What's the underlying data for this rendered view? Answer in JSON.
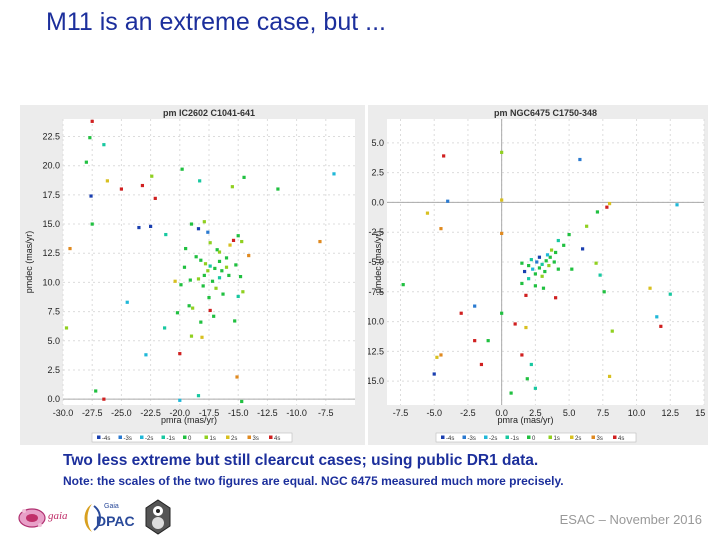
{
  "slide": {
    "title": "M11 is an extreme case, but ...",
    "caption": "Two less extreme but still clearcut cases; using public DR1 data.",
    "note": "Note: the scales of the two figures are equal. NGC 6475 measured much more precisely.",
    "footer": "ESAC – November 2016",
    "logos": {
      "gaia_text": "gaia",
      "dpac_small": "Gaia",
      "dpac_text": "DPAC"
    }
  },
  "colors": {
    "title": "#1c2f9c",
    "panel_bg": "#ececec",
    "plot_bg": "#ffffff",
    "axis_zero": "#aaaaaa",
    "legend": [
      "#1a3fb0",
      "#2a7ad0",
      "#20b8d8",
      "#18c8a0",
      "#20c040",
      "#90d020",
      "#d8c020",
      "#e08a20",
      "#d02020"
    ]
  },
  "chart_data": [
    {
      "type": "scatter",
      "title": "pm IC2602  C1041-641",
      "xlabel": "pmra (mas/yr)",
      "ylabel": "pmdec (mas/yr)",
      "xlim": [
        -30.0,
        -5.0
      ],
      "ylim": [
        -0.5,
        24.0
      ],
      "xticks": [
        "-30.0",
        "-27.5",
        "-25.0",
        "-22.5",
        "-20.0",
        "-17.5",
        "-15.0",
        "-12.5",
        "-10.0",
        "-7.5"
      ],
      "xtick_values": [
        -30.0,
        -27.5,
        -25.0,
        -22.5,
        -20.0,
        -17.5,
        -15.0,
        -12.5,
        -10.0,
        -7.5
      ],
      "yticks": [
        "0.0",
        "2.5",
        "5.0",
        "7.5",
        "10.0",
        "12.5",
        "15.0",
        "17.5",
        "20.0",
        "22.5"
      ],
      "ytick_values": [
        0.0,
        2.5,
        5.0,
        7.5,
        10.0,
        12.5,
        15.0,
        17.5,
        20.0,
        22.5
      ],
      "legend": [
        "-4s",
        "-3s",
        "-2s",
        "-1s",
        "0",
        "1s",
        "2s",
        "3s",
        "4s"
      ],
      "points": [
        {
          "x": -27.7,
          "y": 22.4,
          "c": 4
        },
        {
          "x": -27.5,
          "y": 23.8,
          "c": 8
        },
        {
          "x": -28.0,
          "y": 20.3,
          "c": 4
        },
        {
          "x": -26.5,
          "y": 21.8,
          "c": 3
        },
        {
          "x": -26.2,
          "y": 18.7,
          "c": 6
        },
        {
          "x": -27.6,
          "y": 17.4,
          "c": 0
        },
        {
          "x": -25.0,
          "y": 18.0,
          "c": 8
        },
        {
          "x": -23.2,
          "y": 18.3,
          "c": 8
        },
        {
          "x": -22.4,
          "y": 19.1,
          "c": 5
        },
        {
          "x": -22.1,
          "y": 17.2,
          "c": 8
        },
        {
          "x": -19.8,
          "y": 19.7,
          "c": 4
        },
        {
          "x": -18.3,
          "y": 18.7,
          "c": 3
        },
        {
          "x": -15.5,
          "y": 18.2,
          "c": 5
        },
        {
          "x": -14.5,
          "y": 19.0,
          "c": 4
        },
        {
          "x": -11.6,
          "y": 18.0,
          "c": 4
        },
        {
          "x": -6.8,
          "y": 19.3,
          "c": 2
        },
        {
          "x": -27.5,
          "y": 15.0,
          "c": 4
        },
        {
          "x": -29.4,
          "y": 12.9,
          "c": 7
        },
        {
          "x": -23.5,
          "y": 14.7,
          "c": 0
        },
        {
          "x": -22.5,
          "y": 14.8,
          "c": 0
        },
        {
          "x": -21.2,
          "y": 14.1,
          "c": 3
        },
        {
          "x": -19.0,
          "y": 15.0,
          "c": 4
        },
        {
          "x": -18.4,
          "y": 14.6,
          "c": 0
        },
        {
          "x": -17.9,
          "y": 15.2,
          "c": 5
        },
        {
          "x": -17.6,
          "y": 14.3,
          "c": 1
        },
        {
          "x": -17.4,
          "y": 13.4,
          "c": 5
        },
        {
          "x": -16.8,
          "y": 12.8,
          "c": 4
        },
        {
          "x": -15.7,
          "y": 13.2,
          "c": 6
        },
        {
          "x": -15.4,
          "y": 13.6,
          "c": 8
        },
        {
          "x": -15.0,
          "y": 14.0,
          "c": 4
        },
        {
          "x": -14.7,
          "y": 13.5,
          "c": 5
        },
        {
          "x": -14.1,
          "y": 12.3,
          "c": 7
        },
        {
          "x": -19.5,
          "y": 12.9,
          "c": 4
        },
        {
          "x": -18.6,
          "y": 12.2,
          "c": 4
        },
        {
          "x": -18.2,
          "y": 11.9,
          "c": 4
        },
        {
          "x": -17.8,
          "y": 11.6,
          "c": 5
        },
        {
          "x": -17.4,
          "y": 11.4,
          "c": 3
        },
        {
          "x": -17.0,
          "y": 11.2,
          "c": 4
        },
        {
          "x": -16.6,
          "y": 11.8,
          "c": 4
        },
        {
          "x": -16.4,
          "y": 11.0,
          "c": 4
        },
        {
          "x": -16.0,
          "y": 11.3,
          "c": 5
        },
        {
          "x": -15.8,
          "y": 10.6,
          "c": 4
        },
        {
          "x": -17.9,
          "y": 10.6,
          "c": 4
        },
        {
          "x": -18.4,
          "y": 10.3,
          "c": 5
        },
        {
          "x": -19.1,
          "y": 10.2,
          "c": 4
        },
        {
          "x": -17.2,
          "y": 10.1,
          "c": 4
        },
        {
          "x": -16.6,
          "y": 10.4,
          "c": 3
        },
        {
          "x": -17.6,
          "y": 11.0,
          "c": 5
        },
        {
          "x": -18.0,
          "y": 9.7,
          "c": 4
        },
        {
          "x": -16.9,
          "y": 9.5,
          "c": 5
        },
        {
          "x": -19.9,
          "y": 9.8,
          "c": 4
        },
        {
          "x": -20.4,
          "y": 10.1,
          "c": 6
        },
        {
          "x": -19.6,
          "y": 11.3,
          "c": 4
        },
        {
          "x": -16.0,
          "y": 12.1,
          "c": 4
        },
        {
          "x": -15.2,
          "y": 11.5,
          "c": 4
        },
        {
          "x": -16.3,
          "y": 9.0,
          "c": 4
        },
        {
          "x": -15.0,
          "y": 8.8,
          "c": 3
        },
        {
          "x": -14.6,
          "y": 9.2,
          "c": 5
        },
        {
          "x": -17.5,
          "y": 8.7,
          "c": 4
        },
        {
          "x": -19.2,
          "y": 8.0,
          "c": 4
        },
        {
          "x": -18.9,
          "y": 7.8,
          "c": 5
        },
        {
          "x": -20.2,
          "y": 7.4,
          "c": 4
        },
        {
          "x": -18.2,
          "y": 6.6,
          "c": 4
        },
        {
          "x": -17.1,
          "y": 7.1,
          "c": 4
        },
        {
          "x": -17.4,
          "y": 7.6,
          "c": 8
        },
        {
          "x": -19.0,
          "y": 5.4,
          "c": 5
        },
        {
          "x": -18.1,
          "y": 5.3,
          "c": 6
        },
        {
          "x": -15.3,
          "y": 6.7,
          "c": 4
        },
        {
          "x": -24.5,
          "y": 8.3,
          "c": 2
        },
        {
          "x": -21.3,
          "y": 6.1,
          "c": 3
        },
        {
          "x": -22.9,
          "y": 3.8,
          "c": 2
        },
        {
          "x": -20.0,
          "y": 3.9,
          "c": 8
        },
        {
          "x": -27.2,
          "y": 0.7,
          "c": 4
        },
        {
          "x": -26.5,
          "y": 0.0,
          "c": 8
        },
        {
          "x": -20.0,
          "y": -0.1,
          "c": 2
        },
        {
          "x": -18.4,
          "y": 0.3,
          "c": 3
        },
        {
          "x": -15.1,
          "y": 1.9,
          "c": 7
        },
        {
          "x": -14.7,
          "y": -0.2,
          "c": 4
        },
        {
          "x": -29.7,
          "y": 6.1,
          "c": 5
        },
        {
          "x": -8.0,
          "y": 13.5,
          "c": 7
        },
        {
          "x": -14.8,
          "y": 10.5,
          "c": 4
        },
        {
          "x": -16.6,
          "y": 12.6,
          "c": 5
        }
      ]
    },
    {
      "type": "scatter",
      "title": "pm NGC6475  C1750-348",
      "xlabel": "pmra (mas/yr)",
      "ylabel": "pmdec (mas/yr)",
      "xlim": [
        -8.5,
        15.0
      ],
      "ylim": [
        -17.0,
        7.0
      ],
      "xticks": [
        "-7.5",
        "-5.0",
        "-2.5",
        "0.0",
        "2.5",
        "5.0",
        "7.5",
        "10.0",
        "12.5",
        "15.0"
      ],
      "xtick_values": [
        -7.5,
        -5.0,
        -2.5,
        0.0,
        2.5,
        5.0,
        7.5,
        10.0,
        12.5,
        15.0
      ],
      "yticks": [
        "5.0",
        "2.5",
        "0.0",
        "-2.5",
        "-5.0",
        "-7.5",
        "-10.0",
        "-12.5",
        "-15.0"
      ],
      "ytick_values": [
        5.0,
        2.5,
        0.0,
        -2.5,
        -5.0,
        -7.5,
        -10.0,
        -12.5,
        -15.0
      ],
      "legend": [
        "-4s",
        "-3s",
        "-2s",
        "-1s",
        "0",
        "1s",
        "2s",
        "3s",
        "4s"
      ],
      "points": [
        {
          "x": -4.3,
          "y": 3.9,
          "c": 8
        },
        {
          "x": 0.0,
          "y": 4.2,
          "c": 5
        },
        {
          "x": 5.8,
          "y": 3.6,
          "c": 1
        },
        {
          "x": -4.0,
          "y": 0.1,
          "c": 1
        },
        {
          "x": 0.0,
          "y": 0.2,
          "c": 6
        },
        {
          "x": 8.0,
          "y": -0.1,
          "c": 6
        },
        {
          "x": 7.8,
          "y": -0.4,
          "c": 8
        },
        {
          "x": 13.0,
          "y": -0.2,
          "c": 2
        },
        {
          "x": 7.1,
          "y": -0.8,
          "c": 4
        },
        {
          "x": -5.5,
          "y": -0.9,
          "c": 6
        },
        {
          "x": -4.5,
          "y": -2.2,
          "c": 7
        },
        {
          "x": 0.0,
          "y": -2.6,
          "c": 7
        },
        {
          "x": 6.3,
          "y": -2.0,
          "c": 5
        },
        {
          "x": 5.0,
          "y": -2.7,
          "c": 4
        },
        {
          "x": 4.6,
          "y": -3.6,
          "c": 4
        },
        {
          "x": 4.2,
          "y": -3.2,
          "c": 3
        },
        {
          "x": 4.0,
          "y": -4.2,
          "c": 4
        },
        {
          "x": 3.6,
          "y": -4.6,
          "c": 4
        },
        {
          "x": 3.3,
          "y": -4.9,
          "c": 4
        },
        {
          "x": 3.0,
          "y": -5.2,
          "c": 3
        },
        {
          "x": 2.8,
          "y": -5.5,
          "c": 4
        },
        {
          "x": 3.2,
          "y": -5.8,
          "c": 4
        },
        {
          "x": 3.5,
          "y": -5.3,
          "c": 5
        },
        {
          "x": 3.9,
          "y": -5.0,
          "c": 4
        },
        {
          "x": 2.6,
          "y": -5.0,
          "c": 1
        },
        {
          "x": 2.3,
          "y": -5.6,
          "c": 2
        },
        {
          "x": 2.0,
          "y": -5.3,
          "c": 4
        },
        {
          "x": 2.5,
          "y": -6.0,
          "c": 4
        },
        {
          "x": 3.0,
          "y": -6.2,
          "c": 5
        },
        {
          "x": 2.2,
          "y": -4.8,
          "c": 3
        },
        {
          "x": 4.2,
          "y": -5.6,
          "c": 4
        },
        {
          "x": 1.7,
          "y": -5.8,
          "c": 0
        },
        {
          "x": 2.0,
          "y": -6.4,
          "c": 3
        },
        {
          "x": 3.7,
          "y": -4.0,
          "c": 5
        },
        {
          "x": 3.4,
          "y": -4.4,
          "c": 2
        },
        {
          "x": 2.8,
          "y": -4.6,
          "c": 0
        },
        {
          "x": 1.5,
          "y": -5.1,
          "c": 4
        },
        {
          "x": 5.2,
          "y": -5.6,
          "c": 4
        },
        {
          "x": 6.0,
          "y": -3.9,
          "c": 0
        },
        {
          "x": 7.0,
          "y": -5.1,
          "c": 5
        },
        {
          "x": 2.5,
          "y": -7.0,
          "c": 4
        },
        {
          "x": 3.1,
          "y": -7.2,
          "c": 4
        },
        {
          "x": 1.8,
          "y": -7.8,
          "c": 8
        },
        {
          "x": 4.0,
          "y": -8.0,
          "c": 8
        },
        {
          "x": 1.5,
          "y": -6.8,
          "c": 4
        },
        {
          "x": 7.3,
          "y": -6.1,
          "c": 3
        },
        {
          "x": 7.6,
          "y": -7.5,
          "c": 4
        },
        {
          "x": 11.0,
          "y": -7.2,
          "c": 6
        },
        {
          "x": 12.5,
          "y": -7.7,
          "c": 3
        },
        {
          "x": -7.3,
          "y": -6.9,
          "c": 4
        },
        {
          "x": -2.0,
          "y": -8.7,
          "c": 1
        },
        {
          "x": -3.0,
          "y": -9.3,
          "c": 8
        },
        {
          "x": 0.0,
          "y": -9.3,
          "c": 4
        },
        {
          "x": 1.0,
          "y": -10.2,
          "c": 8
        },
        {
          "x": 1.8,
          "y": -10.5,
          "c": 6
        },
        {
          "x": 11.5,
          "y": -9.6,
          "c": 2
        },
        {
          "x": 11.8,
          "y": -10.4,
          "c": 8
        },
        {
          "x": 8.2,
          "y": -10.8,
          "c": 5
        },
        {
          "x": -2.0,
          "y": -11.6,
          "c": 8
        },
        {
          "x": -1.0,
          "y": -11.6,
          "c": 4
        },
        {
          "x": -4.5,
          "y": -12.8,
          "c": 7
        },
        {
          "x": -4.8,
          "y": -13.0,
          "c": 6
        },
        {
          "x": 1.5,
          "y": -12.8,
          "c": 8
        },
        {
          "x": -1.5,
          "y": -13.6,
          "c": 8
        },
        {
          "x": 2.2,
          "y": -13.6,
          "c": 3
        },
        {
          "x": -5.0,
          "y": -14.4,
          "c": 0
        },
        {
          "x": 1.9,
          "y": -14.8,
          "c": 4
        },
        {
          "x": 8.0,
          "y": -14.6,
          "c": 6
        },
        {
          "x": 0.7,
          "y": -16.0,
          "c": 4
        },
        {
          "x": 2.5,
          "y": -15.6,
          "c": 3
        }
      ]
    }
  ]
}
